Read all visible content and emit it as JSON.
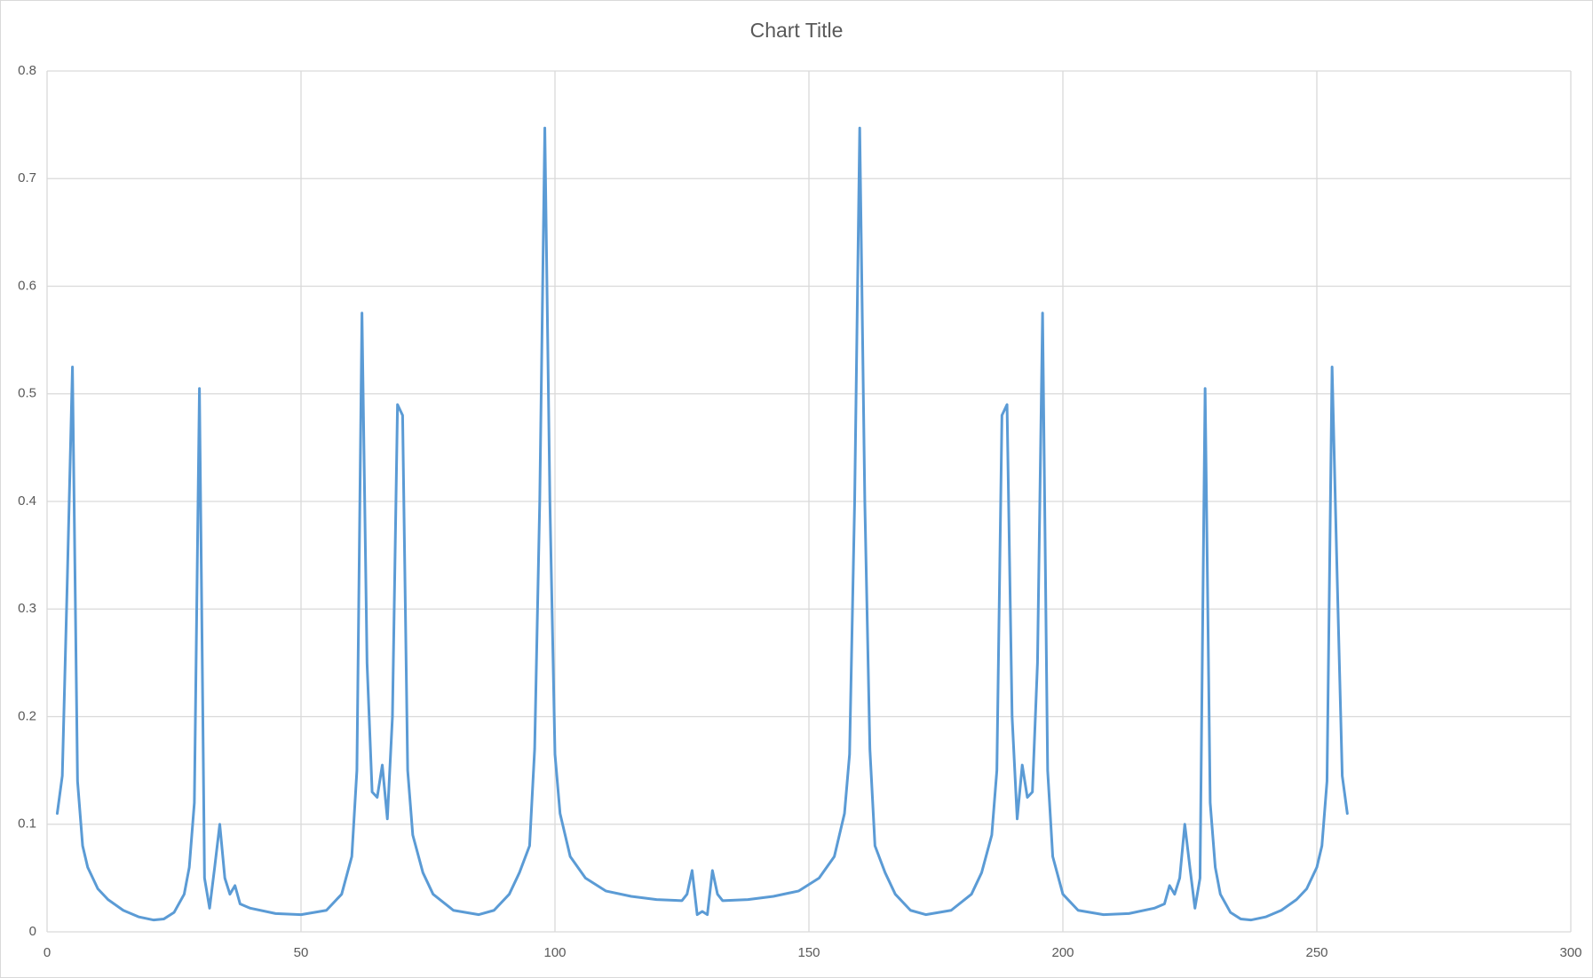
{
  "chart_data": {
    "type": "line",
    "title": "Chart Title",
    "x": [
      2,
      3,
      4,
      5,
      6,
      7,
      8,
      10,
      12,
      15,
      18,
      21,
      23,
      25,
      27,
      28,
      29,
      30,
      31,
      32,
      33,
      34,
      35,
      36,
      37,
      38,
      40,
      45,
      50,
      55,
      58,
      60,
      61,
      62,
      63,
      64,
      65,
      66,
      67,
      68,
      69,
      70,
      71,
      72,
      74,
      76,
      80,
      85,
      88,
      91,
      93,
      95,
      96,
      97,
      98,
      99,
      100,
      101,
      103,
      106,
      110,
      115,
      120,
      125,
      126,
      127,
      128,
      129,
      130,
      131,
      132,
      133,
      138,
      143,
      148,
      152,
      155,
      157,
      158,
      159,
      160,
      161,
      162,
      163,
      165,
      167,
      170,
      173,
      178,
      182,
      184,
      186,
      187,
      188,
      189,
      190,
      191,
      192,
      193,
      194,
      195,
      196,
      197,
      198,
      200,
      203,
      208,
      213,
      218,
      220,
      221,
      222,
      223,
      224,
      225,
      226,
      227,
      228,
      229,
      230,
      231,
      233,
      235,
      237,
      240,
      243,
      246,
      248,
      250,
      251,
      252,
      253,
      254,
      255,
      256
    ],
    "values": [
      0.11,
      0.145,
      0.33,
      0.525,
      0.14,
      0.08,
      0.06,
      0.04,
      0.03,
      0.02,
      0.014,
      0.011,
      0.012,
      0.018,
      0.035,
      0.06,
      0.12,
      0.505,
      0.05,
      0.022,
      0.06,
      0.1,
      0.05,
      0.035,
      0.043,
      0.026,
      0.022,
      0.017,
      0.016,
      0.02,
      0.035,
      0.07,
      0.15,
      0.575,
      0.25,
      0.13,
      0.125,
      0.155,
      0.105,
      0.2,
      0.49,
      0.48,
      0.15,
      0.09,
      0.055,
      0.035,
      0.02,
      0.016,
      0.02,
      0.035,
      0.055,
      0.08,
      0.17,
      0.4,
      0.747,
      0.4,
      0.165,
      0.11,
      0.07,
      0.05,
      0.038,
      0.033,
      0.03,
      0.029,
      0.035,
      0.057,
      0.016,
      0.019,
      0.016,
      0.057,
      0.035,
      0.029,
      0.03,
      0.033,
      0.038,
      0.05,
      0.07,
      0.11,
      0.165,
      0.4,
      0.747,
      0.4,
      0.17,
      0.08,
      0.055,
      0.035,
      0.02,
      0.016,
      0.02,
      0.035,
      0.055,
      0.09,
      0.15,
      0.48,
      0.49,
      0.2,
      0.105,
      0.155,
      0.125,
      0.13,
      0.25,
      0.575,
      0.15,
      0.07,
      0.035,
      0.02,
      0.016,
      0.017,
      0.022,
      0.026,
      0.043,
      0.035,
      0.05,
      0.1,
      0.06,
      0.022,
      0.05,
      0.505,
      0.12,
      0.06,
      0.035,
      0.018,
      0.012,
      0.011,
      0.014,
      0.02,
      0.03,
      0.04,
      0.06,
      0.08,
      0.14,
      0.525,
      0.33,
      0.145,
      0.11
    ],
    "color": "#5b9bd5",
    "xlim": [
      0,
      300
    ],
    "xticks": [
      0,
      50,
      100,
      150,
      200,
      250,
      300
    ],
    "ylim": [
      0,
      0.8
    ],
    "yticks": [
      0,
      0.1,
      0.2,
      0.3,
      0.4,
      0.5,
      0.6,
      0.7,
      0.8
    ],
    "grid": true
  }
}
